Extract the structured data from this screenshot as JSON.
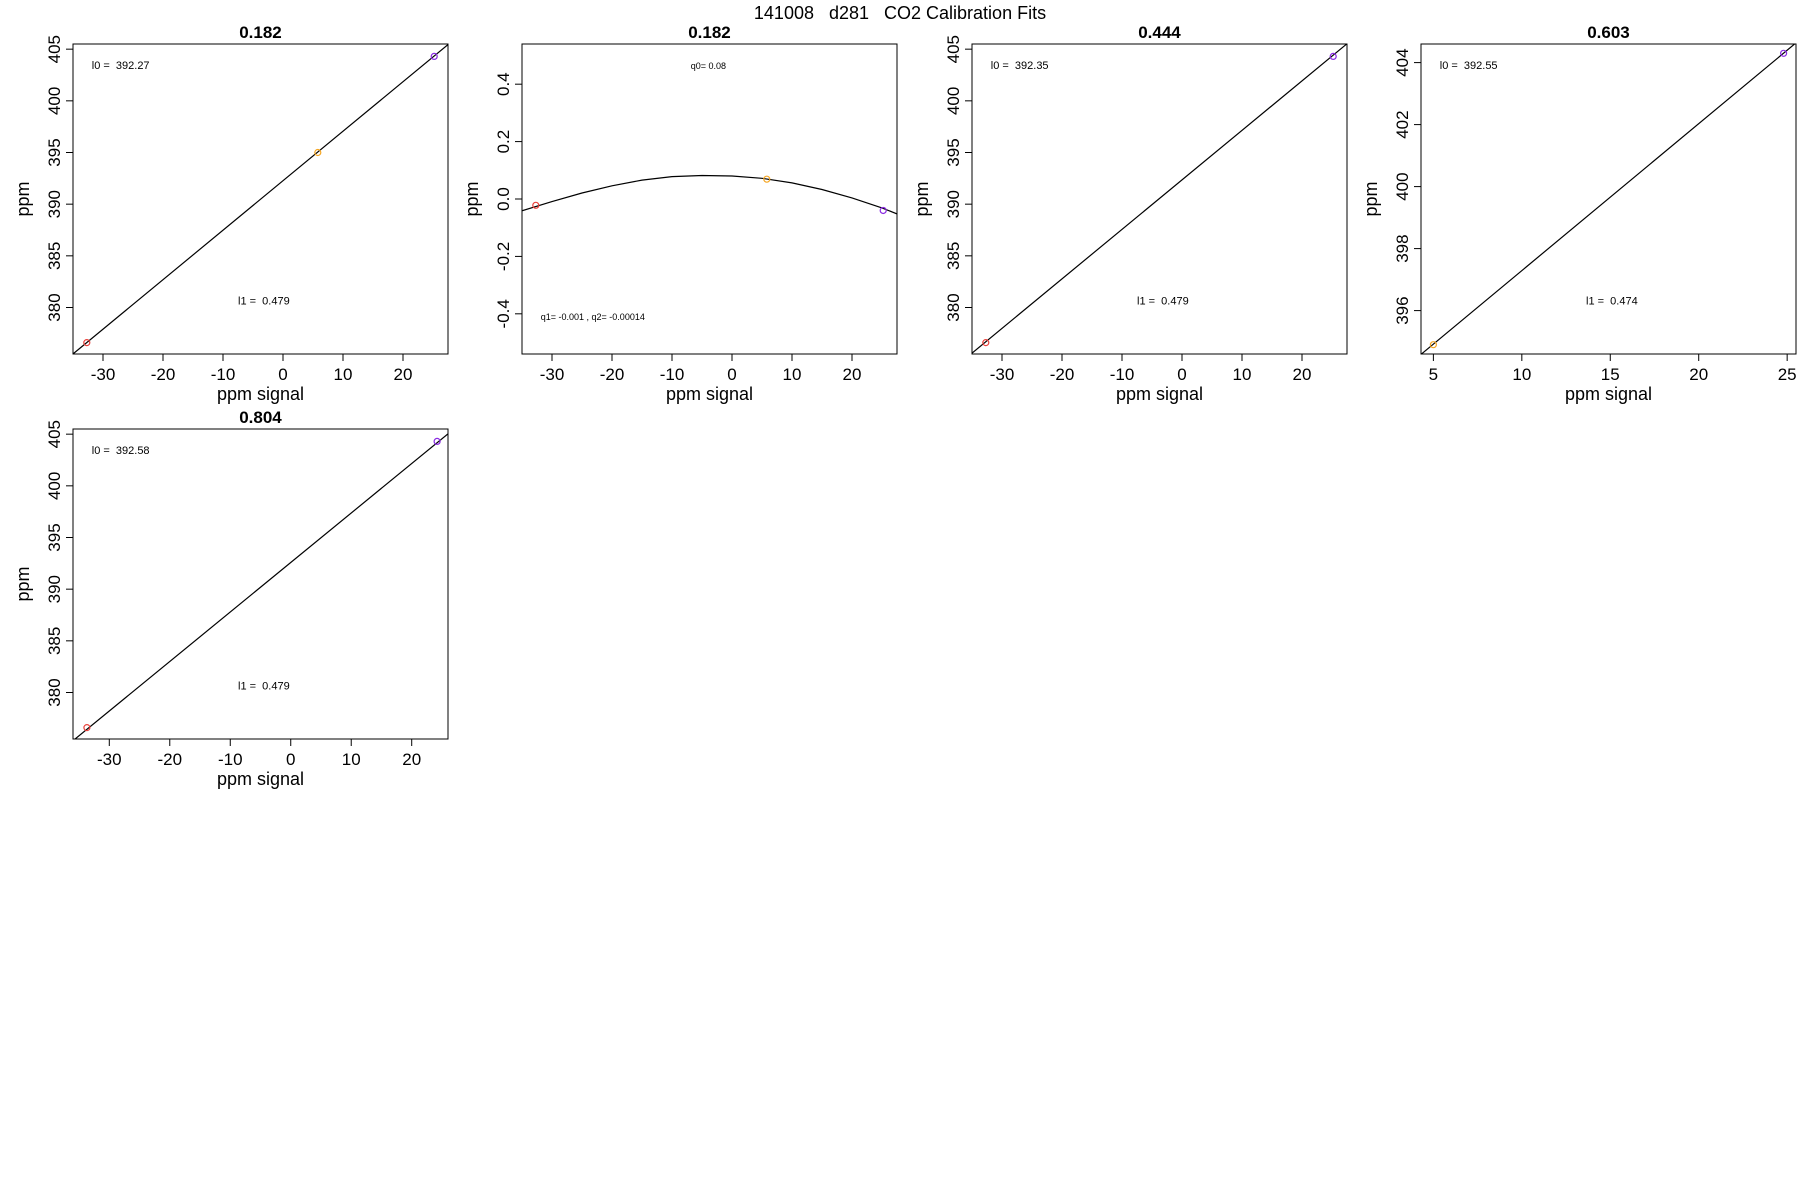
{
  "figure": {
    "title": "141008   d281   CO2 Calibration Fits"
  },
  "chart_data": [
    {
      "type": "scatter",
      "title": "0.182",
      "xlabel": "ppm signal",
      "ylabel": "ppm",
      "xlim": [
        -35,
        27.5
      ],
      "ylim": [
        375.5,
        405.5
      ],
      "xticks": [
        -30,
        -20,
        -10,
        0,
        10,
        20
      ],
      "yticks": [
        380,
        385,
        390,
        395,
        400,
        405
      ],
      "points": [
        {
          "x": -32.7,
          "y": 376.6,
          "color": "#e8403a"
        },
        {
          "x": 5.8,
          "y": 395.0,
          "color": "#f5a623"
        },
        {
          "x": 25.2,
          "y": 404.3,
          "color": "#8a2be2"
        }
      ],
      "fit": {
        "kind": "linear",
        "intercept": 392.27,
        "slope": 0.479
      },
      "annotations": [
        "l0 =  392.27",
        "l1 =  0.479"
      ]
    },
    {
      "type": "scatter",
      "title": "0.182",
      "xlabel": "ppm signal",
      "ylabel": "ppm",
      "xlim": [
        -35,
        27.5
      ],
      "ylim": [
        -0.54,
        0.54
      ],
      "xticks": [
        -30,
        -20,
        -10,
        0,
        10,
        20
      ],
      "yticks": [
        -0.4,
        -0.2,
        0.0,
        0.2,
        0.4
      ],
      "ytick_labels": [
        "-0.4",
        "-0.2",
        "0.0",
        "0.2",
        "0.4"
      ],
      "points": [
        {
          "x": -32.7,
          "y": -0.022,
          "color": "#e8403a"
        },
        {
          "x": 5.8,
          "y": 0.069,
          "color": "#f5a623"
        },
        {
          "x": 25.2,
          "y": -0.04,
          "color": "#8a2be2"
        }
      ],
      "fit": {
        "kind": "quadratic",
        "curve": [
          {
            "x": -35,
            "y": -0.041
          },
          {
            "x": -30,
            "y": -0.009
          },
          {
            "x": -25,
            "y": 0.021
          },
          {
            "x": -20,
            "y": 0.046
          },
          {
            "x": -15,
            "y": 0.066
          },
          {
            "x": -10,
            "y": 0.078
          },
          {
            "x": -5,
            "y": 0.082
          },
          {
            "x": 0,
            "y": 0.08
          },
          {
            "x": 5,
            "y": 0.072
          },
          {
            "x": 10,
            "y": 0.056
          },
          {
            "x": 15,
            "y": 0.033
          },
          {
            "x": 20,
            "y": 0.004
          },
          {
            "x": 25,
            "y": -0.031
          },
          {
            "x": 27.5,
            "y": -0.052
          }
        ]
      },
      "annotations": [
        "q0= 0.08",
        "q1= -0.001 , q2= -0.00014"
      ]
    },
    {
      "type": "scatter",
      "title": "0.444",
      "xlabel": "ppm signal",
      "ylabel": "ppm",
      "xlim": [
        -35,
        27.5
      ],
      "ylim": [
        375.5,
        405.5
      ],
      "xticks": [
        -30,
        -20,
        -10,
        0,
        10,
        20
      ],
      "yticks": [
        380,
        385,
        390,
        395,
        400,
        405
      ],
      "points": [
        {
          "x": -32.7,
          "y": 376.6,
          "color": "#e8403a"
        },
        {
          "x": 25.2,
          "y": 404.3,
          "color": "#8a2be2"
        }
      ],
      "fit": {
        "kind": "linear",
        "intercept": 392.35,
        "slope": 0.479
      },
      "annotations": [
        "l0 =  392.35",
        "l1 =  0.479"
      ]
    },
    {
      "type": "scatter",
      "title": "0.603",
      "xlabel": "ppm signal",
      "ylabel": "ppm",
      "xlim": [
        4.3,
        25.5
      ],
      "ylim": [
        394.6,
        404.6
      ],
      "xticks": [
        5,
        10,
        15,
        20,
        25
      ],
      "yticks": [
        396,
        398,
        400,
        402,
        404
      ],
      "points": [
        {
          "x": 5.0,
          "y": 394.9,
          "color": "#f5a623"
        },
        {
          "x": 24.8,
          "y": 404.3,
          "color": "#8a2be2"
        }
      ],
      "fit": {
        "kind": "linear",
        "intercept": 392.55,
        "slope": 0.474
      },
      "annotations": [
        "l0 =  392.55",
        "l1 =  0.474"
      ]
    },
    {
      "type": "scatter",
      "title": "0.804",
      "xlabel": "ppm signal",
      "ylabel": "ppm",
      "xlim": [
        -36,
        26
      ],
      "ylim": [
        375.5,
        405.5
      ],
      "xticks": [
        -30,
        -20,
        -10,
        0,
        10,
        20
      ],
      "yticks": [
        380,
        385,
        390,
        395,
        400,
        405
      ],
      "points": [
        {
          "x": -33.7,
          "y": 376.6,
          "color": "#e8403a"
        },
        {
          "x": 24.2,
          "y": 404.3,
          "color": "#8a2be2"
        }
      ],
      "fit": {
        "kind": "linear",
        "intercept": 392.58,
        "slope": 0.479
      },
      "annotations": [
        "l0 =  392.58",
        "l1 =  0.479"
      ]
    }
  ]
}
